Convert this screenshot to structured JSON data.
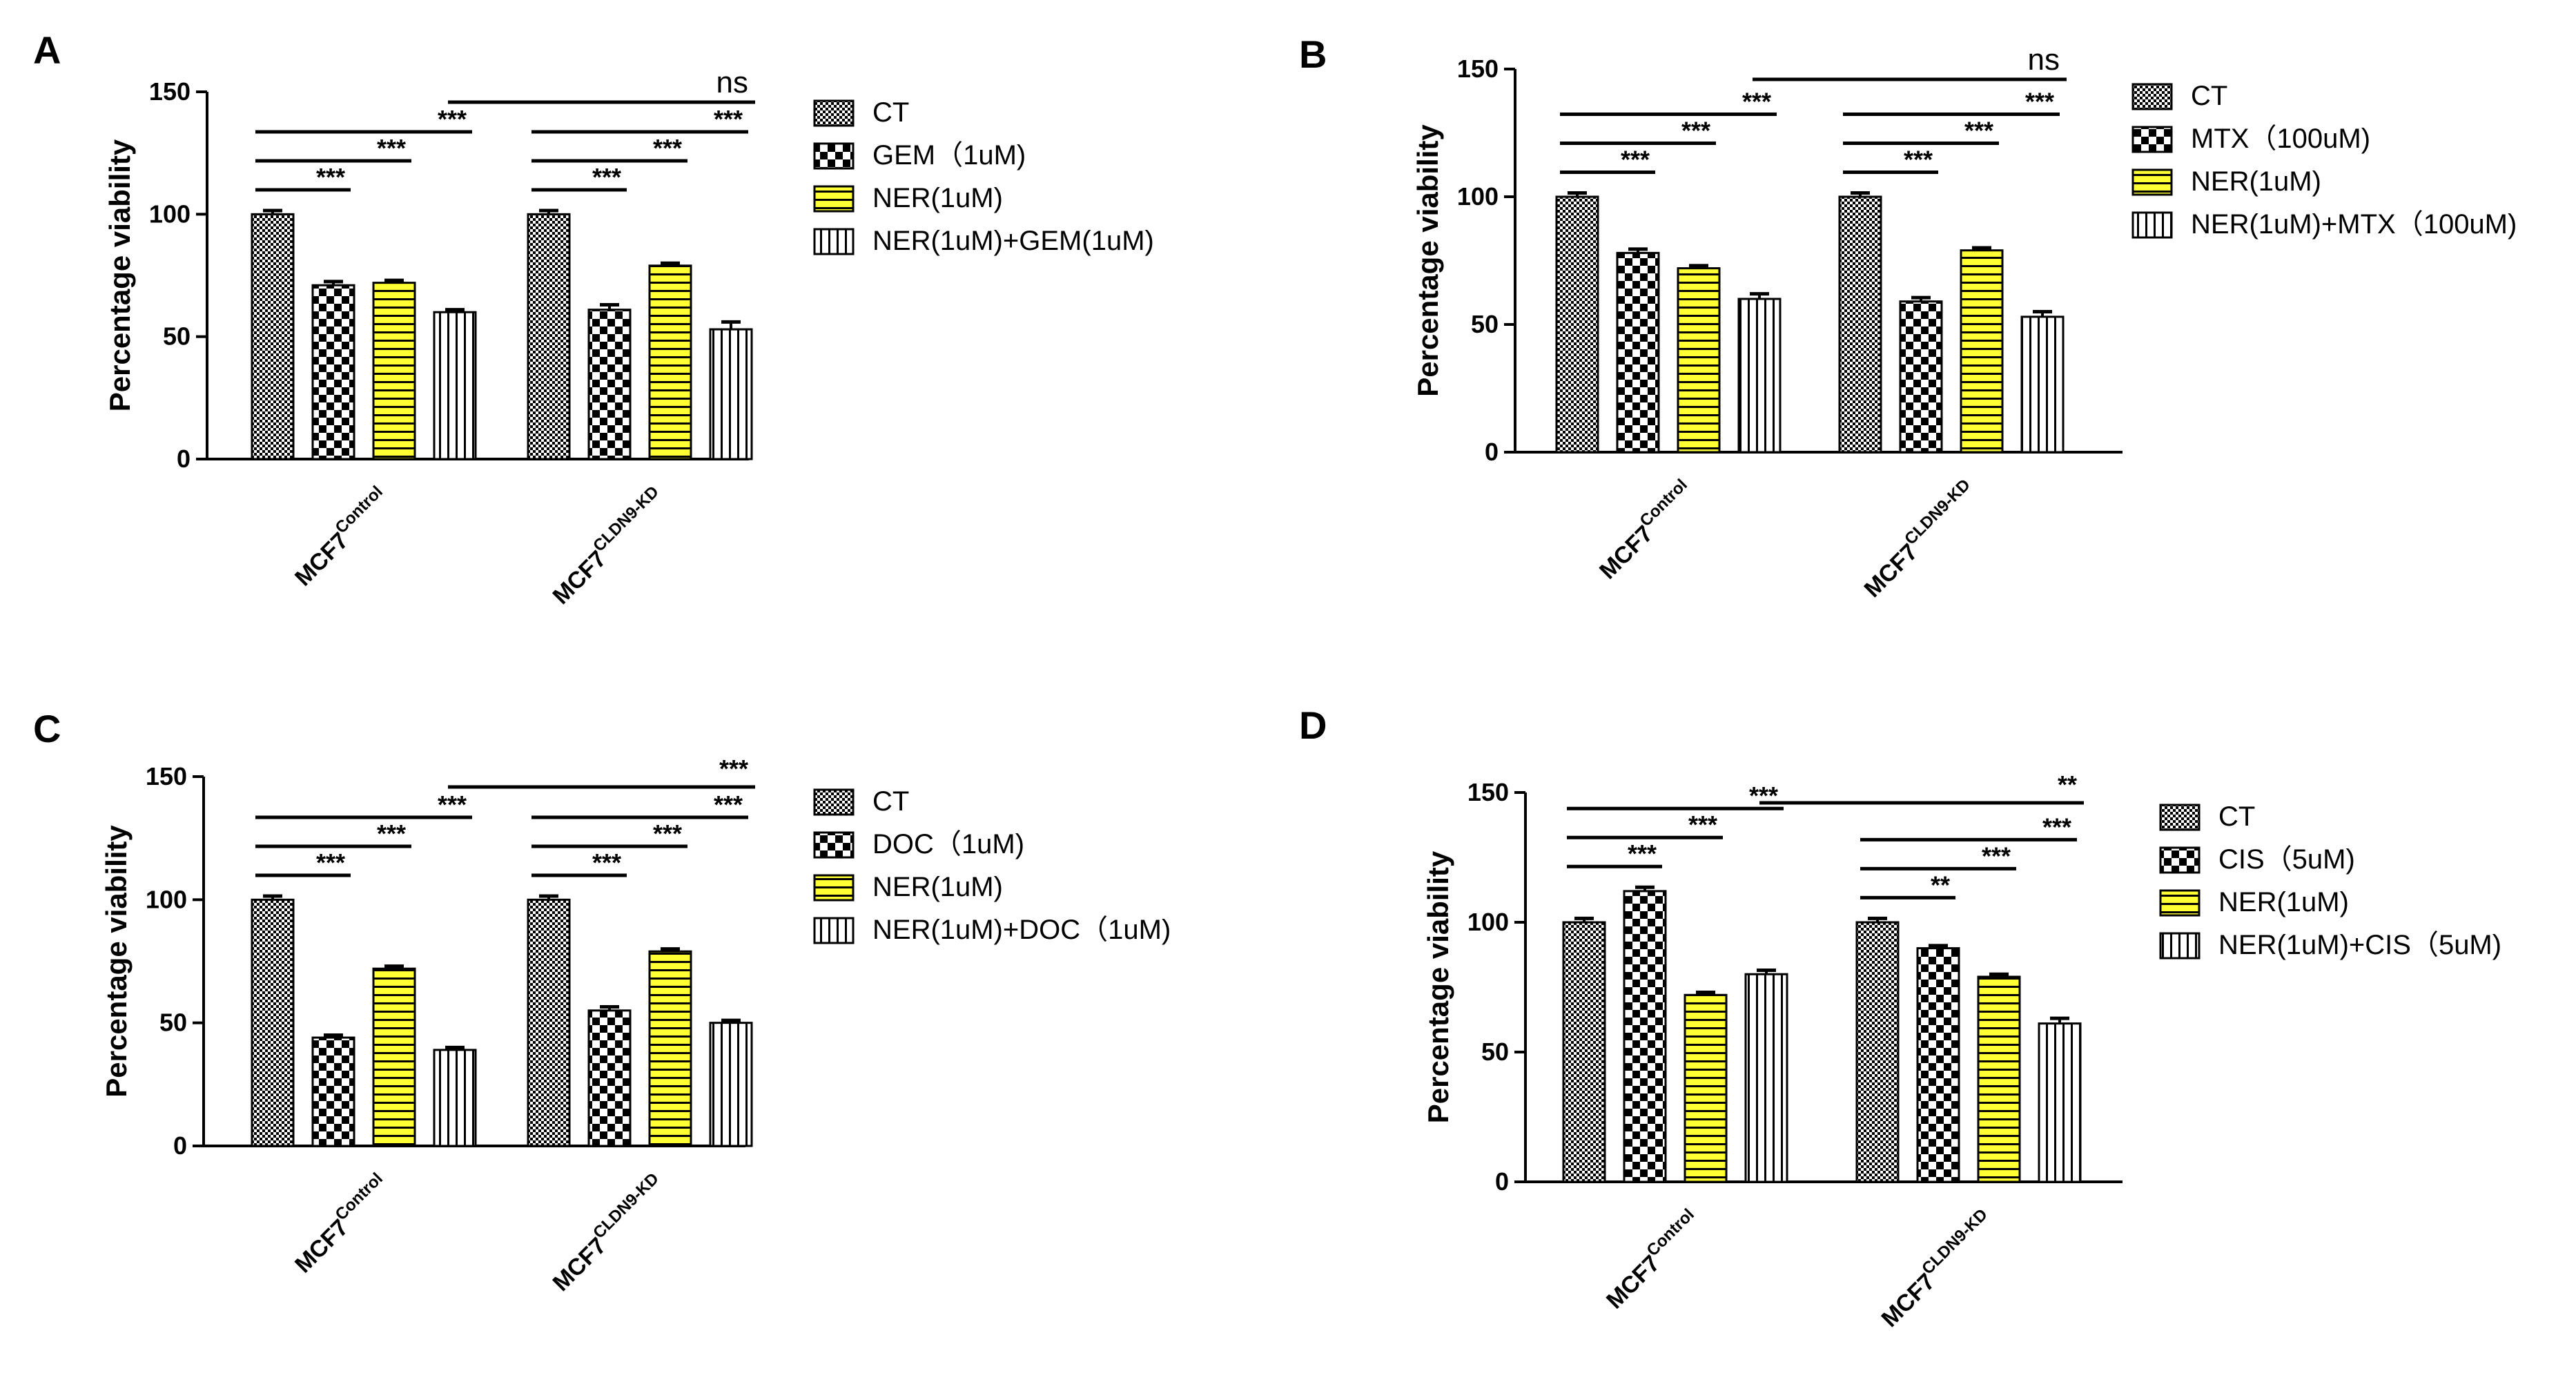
{
  "colors": {
    "ink": "#000000",
    "highlight": "#ffff33",
    "background": "#ffffff"
  },
  "chart_data": [
    {
      "type": "bar",
      "panel_label": "A",
      "categories": [
        "MCF7",
        "MCF7"
      ],
      "category_superscripts": [
        "Control",
        "CLDN9-KD"
      ],
      "series": [
        {
          "name": "CT",
          "pattern": "check-fine",
          "values": [
            100,
            100
          ],
          "errors": [
            1.5,
            1.5
          ]
        },
        {
          "name": "GEM（1uM)",
          "pattern": "check-coarse",
          "values": [
            71,
            61
          ],
          "errors": [
            1.5,
            2
          ]
        },
        {
          "name": "NER(1uM)",
          "pattern": "hstripes-yellow",
          "values": [
            72,
            79
          ],
          "errors": [
            1,
            1
          ]
        },
        {
          "name": "NER(1uM)+GEM(1uM)",
          "pattern": "vstripes",
          "values": [
            60,
            53
          ],
          "errors": [
            1,
            3
          ]
        }
      ],
      "ylabel": "Percentage viability",
      "ylim": [
        0,
        150
      ],
      "yticks": [
        0,
        50,
        100,
        150
      ],
      "significance": {
        "within": [
          [
            {
              "series": 1,
              "label": "***"
            },
            {
              "series": 2,
              "label": "***"
            },
            {
              "series": 3,
              "label": "***"
            }
          ],
          [
            {
              "series": 1,
              "label": "***"
            },
            {
              "series": 2,
              "label": "***"
            },
            {
              "series": 3,
              "label": "***"
            }
          ]
        ],
        "between": {
          "series": 3,
          "label": "ns"
        }
      }
    },
    {
      "type": "bar",
      "panel_label": "B",
      "categories": [
        "MCF7",
        "MCF7"
      ],
      "category_superscripts": [
        "Control",
        "CLDN9-KD"
      ],
      "series": [
        {
          "name": "CT",
          "pattern": "check-fine",
          "values": [
            100,
            100
          ],
          "errors": [
            1.5,
            1.5
          ]
        },
        {
          "name": "MTX（100uM)",
          "pattern": "check-coarse",
          "values": [
            78,
            59
          ],
          "errors": [
            1.5,
            1.5
          ]
        },
        {
          "name": "NER(1uM)",
          "pattern": "hstripes-yellow",
          "values": [
            72,
            79
          ],
          "errors": [
            1,
            1
          ]
        },
        {
          "name": "NER(1uM)+MTX（100uM)",
          "pattern": "vstripes",
          "values": [
            60,
            53
          ],
          "errors": [
            2,
            2
          ]
        }
      ],
      "ylabel": "Percentage viability",
      "ylim": [
        0,
        150
      ],
      "yticks": [
        0,
        50,
        100,
        150
      ],
      "significance": {
        "within": [
          [
            {
              "series": 1,
              "label": "***"
            },
            {
              "series": 2,
              "label": "***"
            },
            {
              "series": 3,
              "label": "***"
            }
          ],
          [
            {
              "series": 1,
              "label": "***"
            },
            {
              "series": 2,
              "label": "***"
            },
            {
              "series": 3,
              "label": "***"
            }
          ]
        ],
        "between": {
          "series": 3,
          "label": "ns"
        }
      }
    },
    {
      "type": "bar",
      "panel_label": "C",
      "categories": [
        "MCF7",
        "MCF7"
      ],
      "category_superscripts": [
        "Control",
        "CLDN9-KD"
      ],
      "series": [
        {
          "name": "CT",
          "pattern": "check-fine",
          "values": [
            100,
            100
          ],
          "errors": [
            1.5,
            1.5
          ]
        },
        {
          "name": "DOC（1uM)",
          "pattern": "check-coarse",
          "values": [
            44,
            55
          ],
          "errors": [
            1,
            1.5
          ]
        },
        {
          "name": "NER(1uM)",
          "pattern": "hstripes-yellow",
          "values": [
            72,
            79
          ],
          "errors": [
            1,
            1
          ]
        },
        {
          "name": "NER(1uM)+DOC（1uM)",
          "pattern": "vstripes",
          "values": [
            39,
            50
          ],
          "errors": [
            1,
            1
          ]
        }
      ],
      "ylabel": "Percentage viability",
      "ylim": [
        0,
        150
      ],
      "yticks": [
        0,
        50,
        100,
        150
      ],
      "significance": {
        "within": [
          [
            {
              "series": 1,
              "label": "***"
            },
            {
              "series": 2,
              "label": "***"
            },
            {
              "series": 3,
              "label": "***"
            }
          ],
          [
            {
              "series": 1,
              "label": "***"
            },
            {
              "series": 2,
              "label": "***"
            },
            {
              "series": 3,
              "label": "***"
            }
          ]
        ],
        "between": {
          "series": 3,
          "label": "***"
        }
      }
    },
    {
      "type": "bar",
      "panel_label": "D",
      "categories": [
        "MCF7",
        "MCF7"
      ],
      "category_superscripts": [
        "Control",
        "CLDN9-KD"
      ],
      "series": [
        {
          "name": "CT",
          "pattern": "check-fine",
          "values": [
            100,
            100
          ],
          "errors": [
            1.5,
            1.5
          ]
        },
        {
          "name": "CIS（5uM)",
          "pattern": "check-coarse",
          "values": [
            112,
            90
          ],
          "errors": [
            1.5,
            1
          ]
        },
        {
          "name": "NER(1uM)",
          "pattern": "hstripes-yellow",
          "values": [
            72,
            79
          ],
          "errors": [
            1,
            1
          ]
        },
        {
          "name": "NER(1uM)+CIS（5uM)",
          "pattern": "vstripes",
          "values": [
            80,
            61
          ],
          "errors": [
            1.5,
            2
          ]
        }
      ],
      "ylabel": "Percentage viability",
      "ylim": [
        0,
        150
      ],
      "yticks": [
        0,
        50,
        100,
        150
      ],
      "significance": {
        "within": [
          [
            {
              "series": 1,
              "label": "***"
            },
            {
              "series": 2,
              "label": "***"
            },
            {
              "series": 3,
              "label": "***"
            }
          ],
          [
            {
              "series": 1,
              "label": "**"
            },
            {
              "series": 2,
              "label": "***"
            },
            {
              "series": 3,
              "label": "***"
            }
          ]
        ],
        "between": {
          "series": 3,
          "label": "**"
        }
      }
    }
  ]
}
